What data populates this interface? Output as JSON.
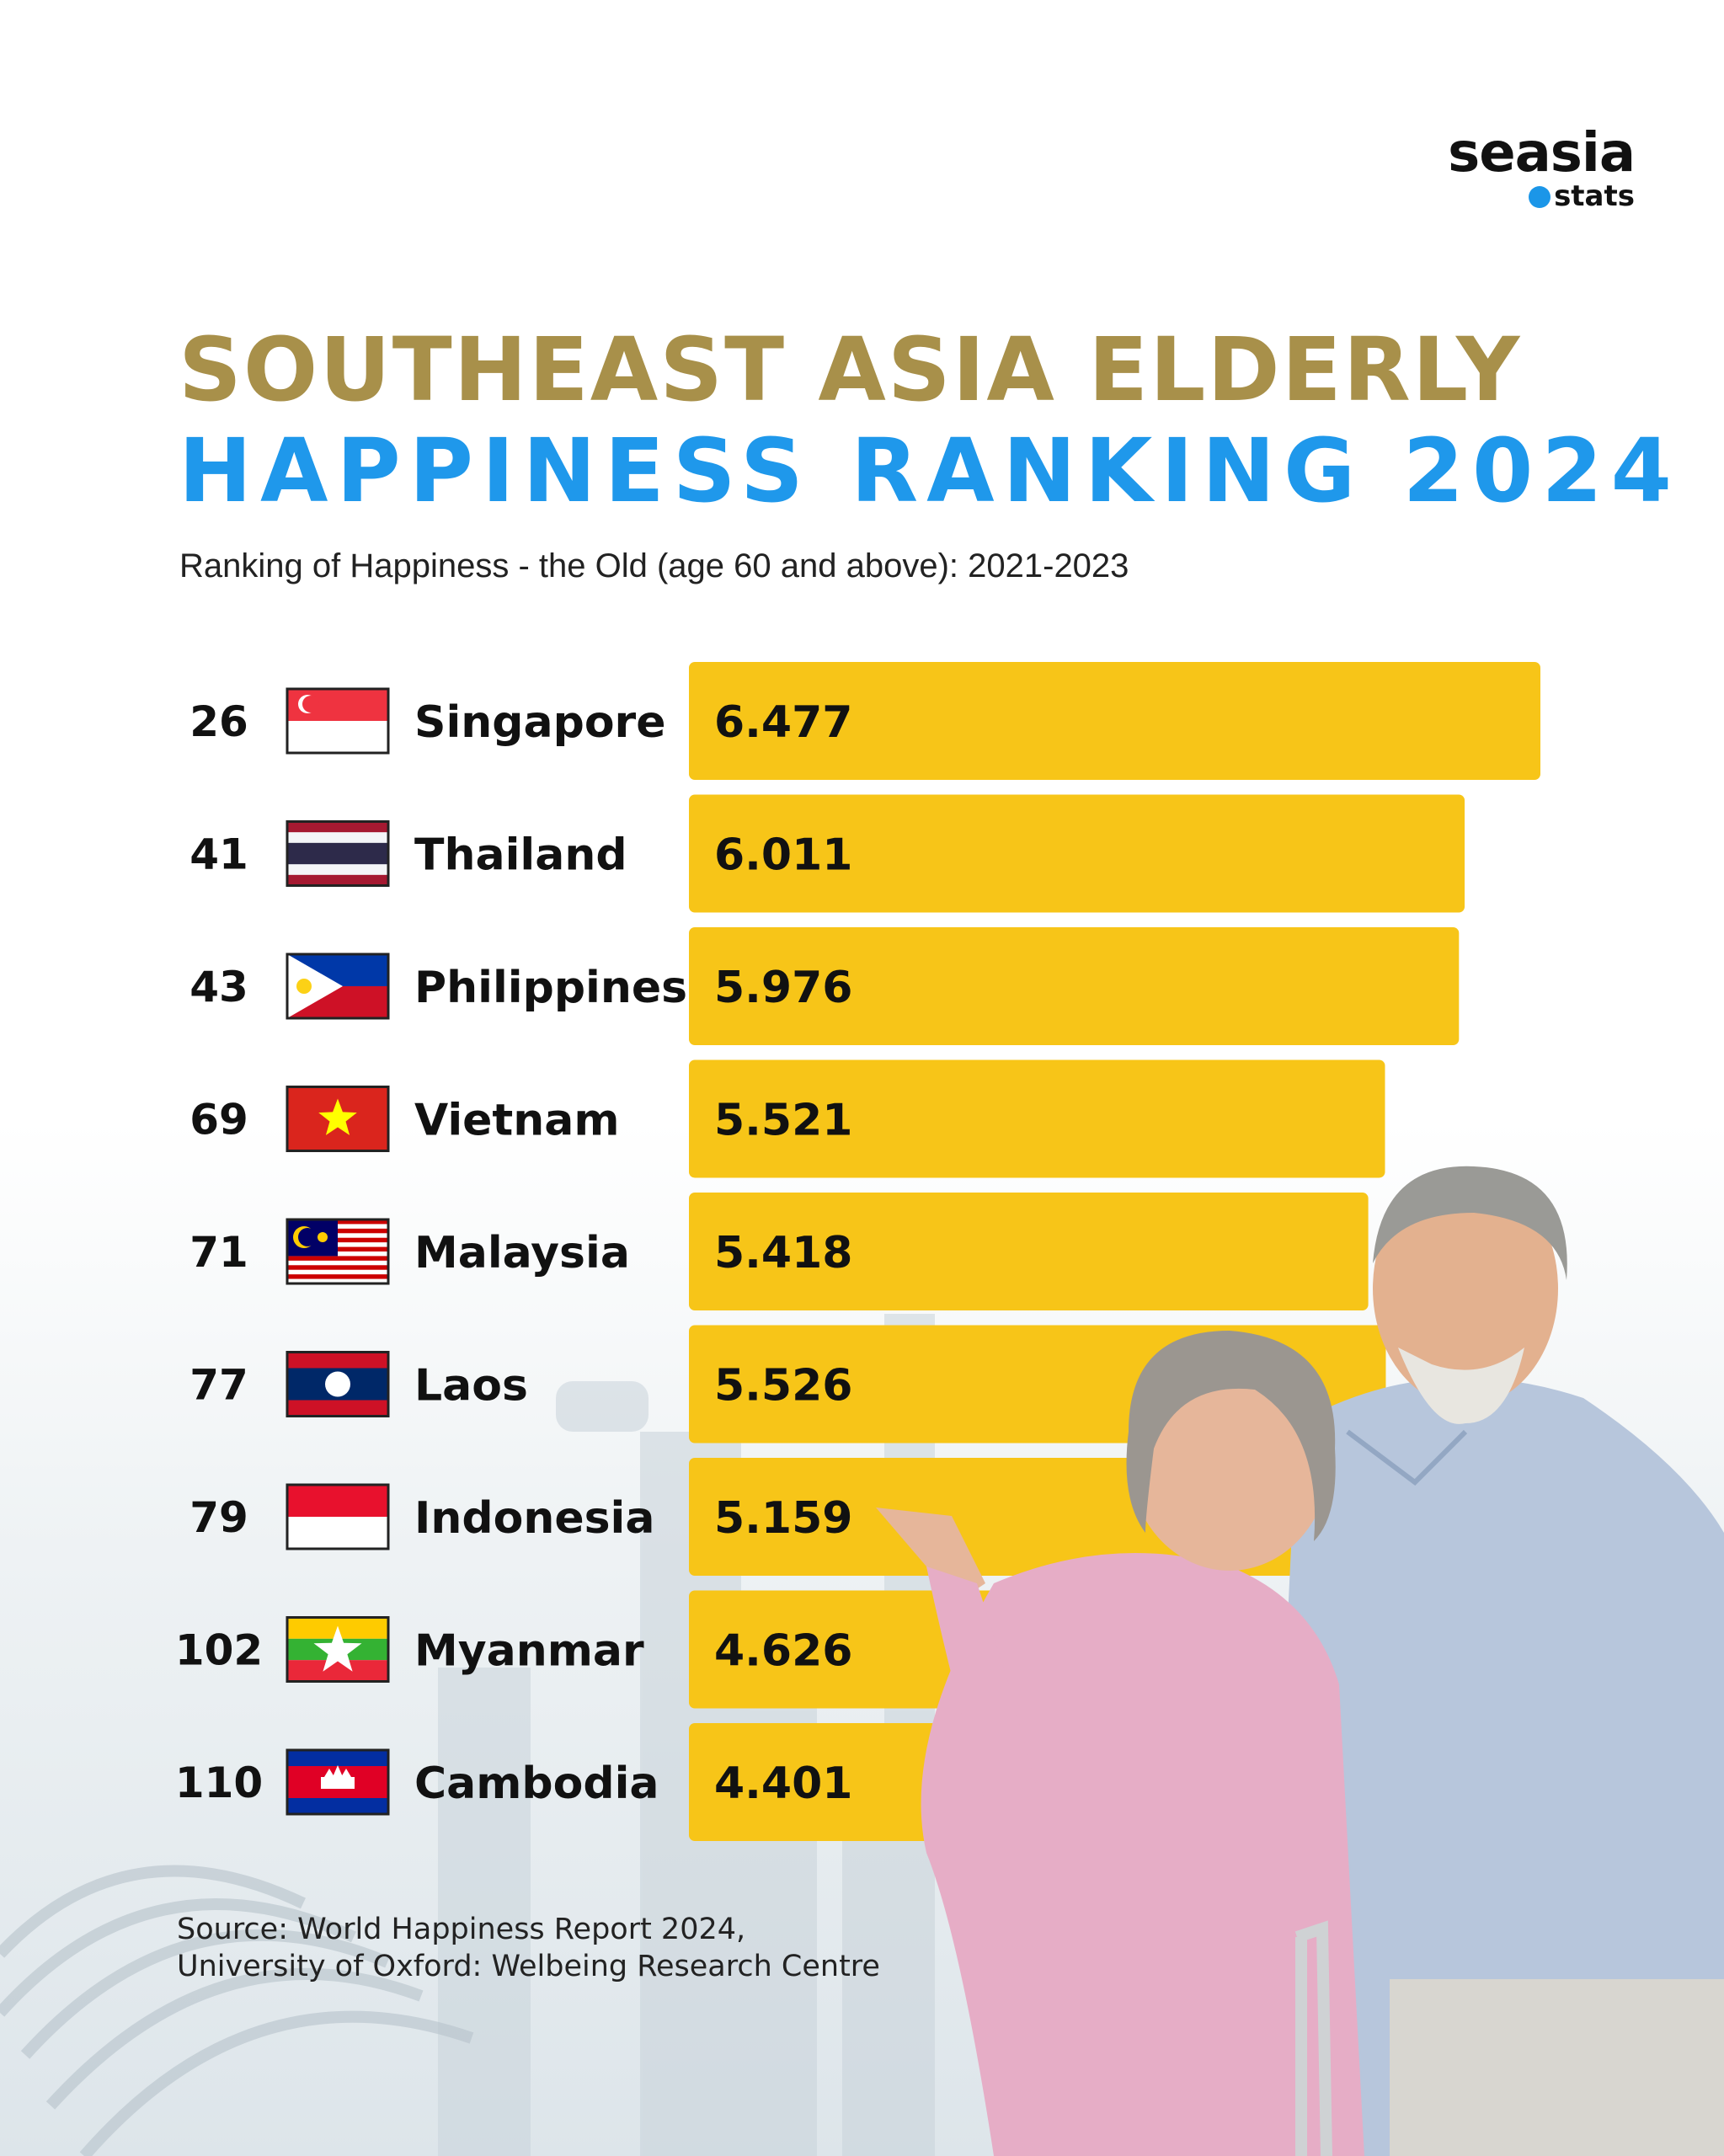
{
  "brand": {
    "line1": "seasia",
    "line2": "stats"
  },
  "title_line1": "SOUTHEAST ASIA ELDERLY",
  "title_line2": "HAPPINESS RANKING 2024",
  "subtitle": "Ranking of Happiness - the Old (age 60 and above): 2021-2023",
  "source_line1": "Source: World Happiness Report 2024,",
  "source_line2": "University of Oxford: Welbeing Research Centre",
  "colors": {
    "bar": "#f7c518",
    "title_gold": "#a8904a",
    "title_blue": "#1f98eb"
  },
  "chart_data": {
    "type": "bar",
    "orientation": "horizontal",
    "categories": [
      "Singapore",
      "Thailand",
      "Philippines",
      "Vietnam",
      "Malaysia",
      "Laos",
      "Indonesia",
      "Myanmar",
      "Cambodia"
    ],
    "ranks": [
      "26",
      "41",
      "43",
      "69",
      "71",
      "77",
      "79",
      "102",
      "110"
    ],
    "values": [
      6.477,
      6.011,
      5.976,
      5.521,
      5.418,
      5.526,
      5.159,
      4.626,
      4.401
    ],
    "value_labels": [
      "6.477",
      "6.011",
      "5.976",
      "5.521",
      "5.418",
      "5.526",
      "5.159",
      "4.626",
      "4.401"
    ],
    "flags": [
      "singapore-flag",
      "thailand-flag",
      "philippines-flag",
      "vietnam-flag",
      "malaysia-flag",
      "laos-flag",
      "indonesia-flag",
      "myanmar-flag",
      "cambodia-flag"
    ],
    "title": "",
    "xlabel": "",
    "ylabel": "",
    "grid": false,
    "legend": "none"
  }
}
